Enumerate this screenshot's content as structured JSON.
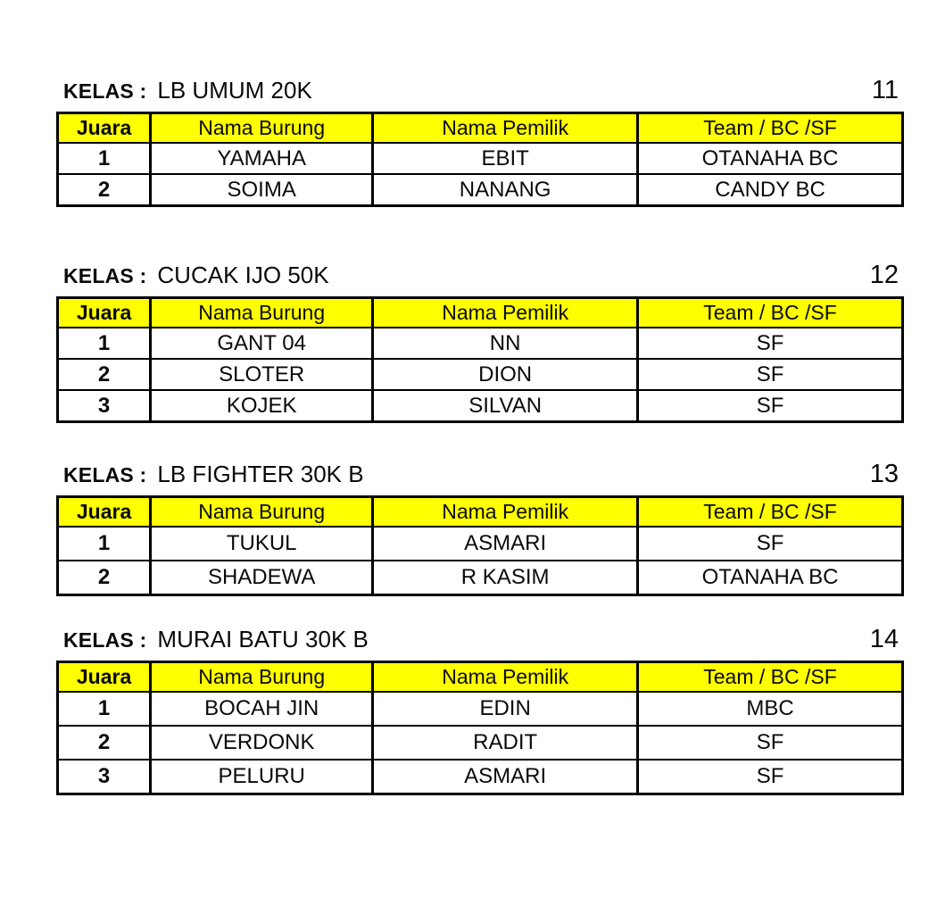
{
  "labels": {
    "kelas_prefix": "KELAS :"
  },
  "colors": {
    "header_bg": "#FFFF00",
    "border": "#000000",
    "text": "#0a0a0a",
    "page_bg": "#ffffff"
  },
  "table_headers": [
    "Juara",
    "Nama Burung",
    "Nama Pemilik",
    "Team / BC /SF"
  ],
  "sections": [
    {
      "class_name": "LB UMUM 20K",
      "page_number": "11",
      "rows": [
        [
          "1",
          "YAMAHA",
          "EBIT",
          "OTANAHA BC"
        ],
        [
          "2",
          "SOIMA",
          "NANANG",
          "CANDY BC"
        ]
      ]
    },
    {
      "class_name": "CUCAK IJO 50K",
      "page_number": "12",
      "rows": [
        [
          "1",
          "GANT 04",
          "NN",
          "SF"
        ],
        [
          "2",
          "SLOTER",
          "DION",
          "SF"
        ],
        [
          "3",
          "KOJEK",
          "SILVAN",
          "SF"
        ]
      ]
    },
    {
      "class_name": "LB FIGHTER 30K B",
      "page_number": "13",
      "rows": [
        [
          "1",
          "TUKUL",
          "ASMARI",
          "SF"
        ],
        [
          "2",
          "SHADEWA",
          "R KASIM",
          "OTANAHA BC"
        ]
      ]
    },
    {
      "class_name": "MURAI BATU 30K B",
      "page_number": "14",
      "rows": [
        [
          "1",
          "BOCAH JIN",
          "EDIN",
          "MBC"
        ],
        [
          "2",
          "VERDONK",
          "RADIT",
          "SF"
        ],
        [
          "3",
          "PELURU",
          "ASMARI",
          "SF"
        ]
      ]
    }
  ]
}
